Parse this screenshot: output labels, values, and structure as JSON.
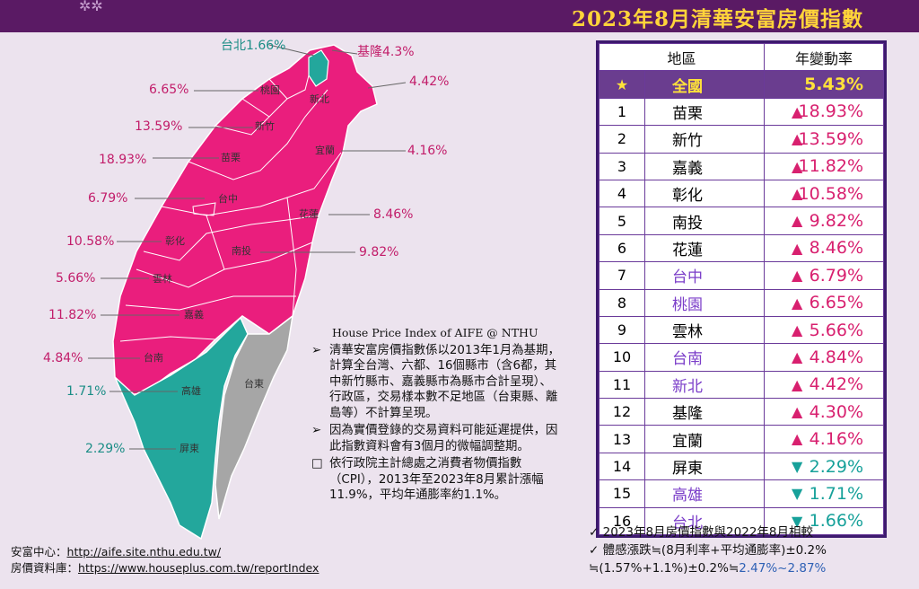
{
  "header": {
    "title": "2023年8月清華安富房價指數"
  },
  "map": {
    "labels": [
      {
        "key": "taipei",
        "text": "台北1.66%"
      },
      {
        "key": "keelung",
        "text": "基隆4.3%"
      },
      {
        "key": "newtaipei",
        "text": "4.42%"
      },
      {
        "key": "taoyuan",
        "text": "6.65%"
      },
      {
        "key": "hsinchu",
        "text": "13.59%"
      },
      {
        "key": "miaoli",
        "text": "18.93%"
      },
      {
        "key": "yilan",
        "text": "4.16%"
      },
      {
        "key": "taichung",
        "text": "6.79%"
      },
      {
        "key": "hualien",
        "text": "8.46%"
      },
      {
        "key": "changhua",
        "text": "10.58%"
      },
      {
        "key": "nantou",
        "text": "9.82%"
      },
      {
        "key": "yunlin",
        "text": "5.66%"
      },
      {
        "key": "chiayi",
        "text": "11.82%"
      },
      {
        "key": "tainan",
        "text": "4.84%"
      },
      {
        "key": "kaohsiung",
        "text": "1.71%"
      },
      {
        "key": "pingtung",
        "text": "2.29%"
      }
    ],
    "county_names": {
      "newtaipei": "新北",
      "taoyuan": "桃園",
      "hsinchu": "新竹",
      "miaoli": "苗栗",
      "yilan": "宜蘭",
      "taichung": "台中",
      "hualien": "花蓮",
      "changhua": "彰化",
      "nantou": "南投",
      "yunlin": "雲林",
      "chiayi": "嘉義",
      "tainan": "台南",
      "kaohsiung": "高雄",
      "taitung": "台東",
      "pingtung": "屏東"
    },
    "colors": {
      "rising": "#ea1e7d",
      "low": "#23a79c",
      "excluded": "#a6a6a6"
    }
  },
  "hpi": {
    "title": "House Price Index of AIFE @ NTHU",
    "items": [
      {
        "marker": "➢",
        "text": "清華安富房價指數係以2013年1月為基期，計算全台灣、六都、16個縣市（含6都，其中新竹縣市、嘉義縣市為縣市合計呈現）、行政區，交易樣本數不足地區（台東縣、離島等）不計算呈現。"
      },
      {
        "marker": "➢",
        "text": "因為實價登錄的交易資料可能延遲提供，因此指數資料會有3個月的微幅調整期。"
      },
      {
        "marker": "□",
        "text": "依行政院主計總處之消費者物價指數（CPI），2013年至2023年8月累計漲幅11.9%，平均年通膨率約1.1%。"
      }
    ]
  },
  "source": {
    "line1_label": "安富中心：",
    "line1_url": "http://aife.site.nthu.edu.tw/",
    "line2_label": "房價資料庫：",
    "line2_url": "https://www.houseplus.com.tw/reportIndex"
  },
  "table": {
    "headers": [
      "地區",
      "年變動率"
    ],
    "national": {
      "star": "★",
      "region": "全國",
      "change": "5.43%"
    },
    "rows": [
      {
        "rank": "1",
        "region": "苗栗",
        "dir": "up",
        "change": "18.93%",
        "city": false
      },
      {
        "rank": "2",
        "region": "新竹",
        "dir": "up",
        "change": "13.59%",
        "city": false
      },
      {
        "rank": "3",
        "region": "嘉義",
        "dir": "up",
        "change": "11.82%",
        "city": false
      },
      {
        "rank": "4",
        "region": "彰化",
        "dir": "up",
        "change": "10.58%",
        "city": false
      },
      {
        "rank": "5",
        "region": "南投",
        "dir": "up",
        "change": "9.82%",
        "city": false
      },
      {
        "rank": "6",
        "region": "花蓮",
        "dir": "up",
        "change": "8.46%",
        "city": false
      },
      {
        "rank": "7",
        "region": "台中",
        "dir": "up",
        "change": "6.79%",
        "city": true
      },
      {
        "rank": "8",
        "region": "桃園",
        "dir": "up",
        "change": "6.65%",
        "city": true
      },
      {
        "rank": "9",
        "region": "雲林",
        "dir": "up",
        "change": "5.66%",
        "city": false
      },
      {
        "rank": "10",
        "region": "台南",
        "dir": "up",
        "change": "4.84%",
        "city": true
      },
      {
        "rank": "11",
        "region": "新北",
        "dir": "up",
        "change": "4.42%",
        "city": true
      },
      {
        "rank": "12",
        "region": "基隆",
        "dir": "up",
        "change": "4.30%",
        "city": false
      },
      {
        "rank": "13",
        "region": "宜蘭",
        "dir": "up",
        "change": "4.16%",
        "city": false
      },
      {
        "rank": "14",
        "region": "屏東",
        "dir": "down",
        "change": "2.29%",
        "city": false
      },
      {
        "rank": "15",
        "region": "高雄",
        "dir": "down",
        "change": "1.71%",
        "city": true
      },
      {
        "rank": "16",
        "region": "台北",
        "dir": "down",
        "change": "1.66%",
        "city": true
      }
    ],
    "up_symbol": "▲",
    "down_symbol": "▼"
  },
  "notes": {
    "check": "✓",
    "line1": "2023年8月房價指數與2022年8月相較",
    "line2": "體感漲跌≒(8月利率+平均通膨率)±0.2%",
    "line3_a": "≒(1.57%+1.1%)±0.2%≒",
    "line3_b": "2.47%~2.87%"
  }
}
